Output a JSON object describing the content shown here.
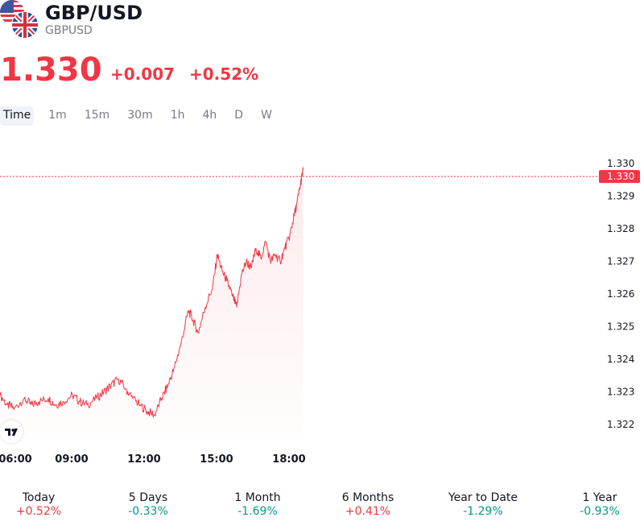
{
  "header": {
    "title": "GBP/USD",
    "subtitle": "GBPUSD",
    "base_flag_icon": "us-flag-icon",
    "quote_flag_icon": "uk-flag-icon"
  },
  "quote": {
    "price": "1.330",
    "change": "+0.007",
    "change_percent": "+0.52%"
  },
  "intervals": [
    "Time",
    "1m",
    "15m",
    "30m",
    "1h",
    "4h",
    "D",
    "W"
  ],
  "active_interval": "Time",
  "colors": {
    "up": "#089981",
    "down": "#f23645",
    "line": "#f23645",
    "text": "#131722",
    "muted": "#787b86"
  },
  "logo_icon": "tradingview-logo-icon",
  "performance": [
    {
      "label": "Today",
      "value": "+0.52%",
      "direction": "up"
    },
    {
      "label": "5 Days",
      "value": "-0.33%",
      "direction": "down"
    },
    {
      "label": "1 Month",
      "value": "-1.69%",
      "direction": "down"
    },
    {
      "label": "6 Months",
      "value": "+0.41%",
      "direction": "up"
    },
    {
      "label": "Year to Date",
      "value": "-1.29%",
      "direction": "down"
    },
    {
      "label": "1 Year",
      "value": "-0.93%",
      "direction": "down"
    }
  ],
  "chart_data": {
    "type": "area",
    "x_ticks": [
      "06:00",
      "09:00",
      "12:00",
      "15:00",
      "18:00"
    ],
    "y_ticks": [
      "1.330",
      "1.329",
      "1.328",
      "1.327",
      "1.326",
      "1.325",
      "1.324",
      "1.323",
      "1.322"
    ],
    "ylim": [
      1.3215,
      1.3303
    ],
    "xlim": [
      6.0,
      18.6
    ],
    "last_price_label": "1.330",
    "last_price": 1.3298,
    "series": [
      {
        "x": [
          6.0,
          6.3,
          6.6,
          7.0,
          7.3,
          7.6,
          8.0,
          8.3,
          8.6,
          9.0,
          9.3,
          9.6,
          10.0,
          10.3,
          10.6,
          10.9,
          11.2,
          11.5,
          11.8,
          12.1,
          12.4,
          12.7,
          12.95,
          13.2,
          13.5,
          13.8,
          14.0,
          14.2,
          14.5,
          14.8,
          15.0,
          15.2,
          15.4,
          15.6,
          15.8,
          16.0,
          16.2,
          16.4,
          16.6,
          16.8,
          17.0,
          17.2,
          17.4,
          17.6,
          17.8,
          18.0,
          18.15,
          18.3,
          18.45,
          18.55
        ],
        "y": [
          1.3229,
          1.3226,
          1.3225,
          1.3228,
          1.3226,
          1.3227,
          1.3228,
          1.3226,
          1.3227,
          1.3229,
          1.3227,
          1.3226,
          1.3228,
          1.323,
          1.3232,
          1.3234,
          1.3231,
          1.3228,
          1.3226,
          1.3224,
          1.3223,
          1.3228,
          1.3232,
          1.3237,
          1.3245,
          1.3255,
          1.3252,
          1.3248,
          1.3256,
          1.3262,
          1.3272,
          1.3267,
          1.3264,
          1.326,
          1.3256,
          1.3266,
          1.327,
          1.3268,
          1.3274,
          1.3271,
          1.3276,
          1.327,
          1.3272,
          1.327,
          1.3274,
          1.3278,
          1.3283,
          1.3288,
          1.3294,
          1.3298
        ]
      }
    ]
  }
}
